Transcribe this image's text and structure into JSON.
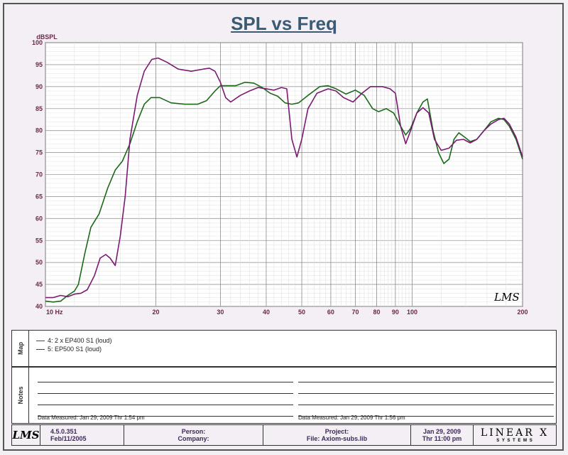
{
  "title": "SPL vs Freq",
  "chart_data": {
    "type": "line",
    "xscale": "log",
    "xlim": [
      10,
      200
    ],
    "ylim": [
      40,
      100
    ],
    "ylabel": "dBSPL",
    "yticks": [
      40,
      45,
      50,
      55,
      60,
      65,
      70,
      75,
      80,
      85,
      90,
      95,
      100
    ],
    "xtick_labels": [
      {
        "x": 10,
        "label": "10  Hz"
      },
      {
        "x": 20,
        "label": "20"
      },
      {
        "x": 30,
        "label": "30"
      },
      {
        "x": 40,
        "label": "40"
      },
      {
        "x": 50,
        "label": "50"
      },
      {
        "x": 60,
        "label": "60"
      },
      {
        "x": 70,
        "label": "70"
      },
      {
        "x": 80,
        "label": "80"
      },
      {
        "x": 90,
        "label": "90"
      },
      {
        "x": 100,
        "label": "100"
      },
      {
        "x": 200,
        "label": "200"
      }
    ],
    "grid": true,
    "watermark": "LMS",
    "series": [
      {
        "name": "4: 2 x EP400 S1 (loud)",
        "color": "#1a6a1a",
        "points": [
          [
            10,
            41.2
          ],
          [
            10.5,
            41
          ],
          [
            11,
            41.2
          ],
          [
            11.5,
            42.5
          ],
          [
            12,
            43.5
          ],
          [
            12.3,
            45
          ],
          [
            12.8,
            52
          ],
          [
            13.3,
            58
          ],
          [
            14,
            61
          ],
          [
            14.8,
            67
          ],
          [
            15.5,
            71
          ],
          [
            16.2,
            73
          ],
          [
            17,
            77
          ],
          [
            17.8,
            82
          ],
          [
            18.6,
            86
          ],
          [
            19.4,
            87.5
          ],
          [
            20.5,
            87.5
          ],
          [
            22,
            86.3
          ],
          [
            24,
            86
          ],
          [
            26,
            86
          ],
          [
            27.5,
            86.8
          ],
          [
            29,
            89
          ],
          [
            30,
            90.2
          ],
          [
            31.5,
            90.2
          ],
          [
            33,
            90.2
          ],
          [
            35,
            91
          ],
          [
            37,
            90.8
          ],
          [
            39,
            89.8
          ],
          [
            41,
            88.5
          ],
          [
            43,
            87.8
          ],
          [
            45,
            86.3
          ],
          [
            47,
            86
          ],
          [
            49,
            86.3
          ],
          [
            52,
            88
          ],
          [
            56,
            90
          ],
          [
            59,
            90.2
          ],
          [
            62,
            89.5
          ],
          [
            66,
            88.3
          ],
          [
            70,
            89.2
          ],
          [
            74,
            88
          ],
          [
            78,
            85
          ],
          [
            81,
            84.3
          ],
          [
            85,
            85
          ],
          [
            89,
            84
          ],
          [
            93,
            81
          ],
          [
            96,
            79
          ],
          [
            99,
            80.5
          ],
          [
            103,
            84
          ],
          [
            107,
            86.5
          ],
          [
            110,
            87.2
          ],
          [
            114,
            80
          ],
          [
            118,
            75
          ],
          [
            122,
            72.5
          ],
          [
            126,
            73.5
          ],
          [
            130,
            78
          ],
          [
            134,
            79.5
          ],
          [
            139,
            78.5
          ],
          [
            144,
            77.5
          ],
          [
            150,
            78
          ],
          [
            157,
            80
          ],
          [
            164,
            82
          ],
          [
            172,
            82.8
          ],
          [
            178,
            82.5
          ],
          [
            184,
            81
          ],
          [
            192,
            78
          ],
          [
            200,
            73.5
          ]
        ]
      },
      {
        "name": "5: EP500 S1 (loud)",
        "color": "#7a1a72",
        "points": [
          [
            10,
            42
          ],
          [
            10.5,
            42
          ],
          [
            11,
            42.5
          ],
          [
            11.5,
            42.2
          ],
          [
            12,
            42.8
          ],
          [
            12.5,
            43
          ],
          [
            13,
            43.8
          ],
          [
            13.6,
            47
          ],
          [
            14.1,
            51
          ],
          [
            14.6,
            51.8
          ],
          [
            15,
            51
          ],
          [
            15.5,
            49.3
          ],
          [
            16,
            56
          ],
          [
            16.5,
            65
          ],
          [
            17,
            78
          ],
          [
            17.8,
            88
          ],
          [
            18.6,
            93.5
          ],
          [
            19.5,
            96.2
          ],
          [
            20.3,
            96.5
          ],
          [
            21.5,
            95.5
          ],
          [
            23,
            94
          ],
          [
            25,
            93.5
          ],
          [
            27,
            94
          ],
          [
            28,
            94.2
          ],
          [
            29,
            93.5
          ],
          [
            30,
            91
          ],
          [
            31,
            87.5
          ],
          [
            32,
            86.5
          ],
          [
            34,
            88
          ],
          [
            36,
            89
          ],
          [
            38,
            89.8
          ],
          [
            40,
            89.5
          ],
          [
            42,
            89.2
          ],
          [
            44,
            89.8
          ],
          [
            45.5,
            89.5
          ],
          [
            47,
            78
          ],
          [
            48.5,
            74
          ],
          [
            50,
            78
          ],
          [
            52,
            85
          ],
          [
            55,
            88.5
          ],
          [
            59,
            89.5
          ],
          [
            62,
            89
          ],
          [
            65,
            87.5
          ],
          [
            69,
            86.5
          ],
          [
            73,
            88.5
          ],
          [
            77,
            90
          ],
          [
            83,
            90
          ],
          [
            87,
            89.5
          ],
          [
            90,
            88.5
          ],
          [
            93,
            81
          ],
          [
            96,
            77
          ],
          [
            99,
            80
          ],
          [
            103,
            84
          ],
          [
            107,
            85.2
          ],
          [
            111,
            84
          ],
          [
            115,
            78
          ],
          [
            120,
            75.5
          ],
          [
            126,
            76
          ],
          [
            132,
            77.8
          ],
          [
            138,
            78
          ],
          [
            144,
            77.2
          ],
          [
            150,
            78
          ],
          [
            157,
            80
          ],
          [
            164,
            81.5
          ],
          [
            172,
            82.5
          ],
          [
            178,
            82.8
          ],
          [
            184,
            81.5
          ],
          [
            192,
            78.5
          ],
          [
            200,
            74
          ]
        ]
      }
    ]
  },
  "map": {
    "side_label": "Map",
    "legend": [
      {
        "label": "4: 2 x EP400 S1 (loud)",
        "color": "#1a6a1a"
      },
      {
        "label": "5: EP500 S1 (loud)",
        "color": "#7a1a72"
      }
    ]
  },
  "notes": {
    "side_label": "Notes",
    "left_measured": "Data Measured: Jan 29, 2009  Thr  1:54 pm",
    "right_measured": "Data Measured: Jan 29, 2009  Thr  1:56 pm"
  },
  "footer": {
    "logo": "LMS",
    "version": "4.5.0.351",
    "version_date": "Feb/11/2005",
    "person_label": "Person:",
    "company_label": "Company:",
    "project_label": "Project:",
    "file_label": "File: Axiom-subs.lib",
    "date": "Jan 29, 2009",
    "time": "Thr  11:00 pm",
    "brand": "LINEAR X",
    "brand_sub": "S Y S T E M S"
  }
}
